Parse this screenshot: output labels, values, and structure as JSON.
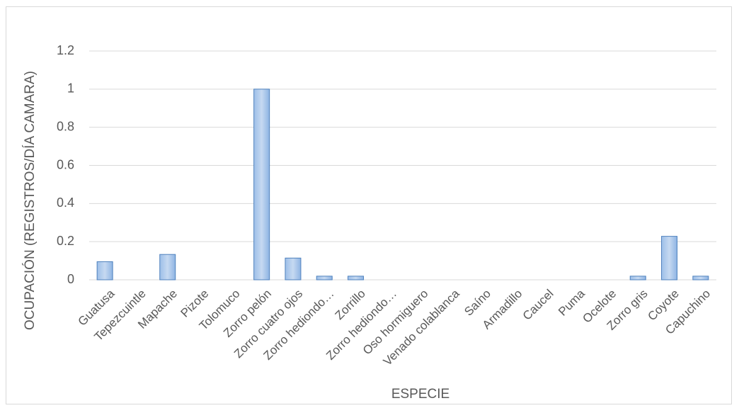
{
  "chart_data": {
    "type": "bar",
    "title": "",
    "xlabel": "ESPECIE",
    "ylabel": "OCUPACIÓN (REGISTROS/DÍA CAMARA)",
    "ylim": [
      0,
      1.2
    ],
    "yticks": [
      "0",
      "0.2",
      "0.4",
      "0.6",
      "0.8",
      "1",
      "1.2"
    ],
    "ytick_values": [
      0,
      0.2,
      0.4,
      0.6,
      0.8,
      1,
      1.2
    ],
    "grid": true,
    "legend": "none",
    "categories": [
      "Guatusa",
      "Tepezcuintle",
      "Mapache",
      "Pizote",
      "Tolomuco",
      "Zorro pelón",
      "Zorro cuatro ojos",
      "Zorro hediondo…",
      "Zorrillo",
      "Zorro hediondo…",
      "Oso hormiguero",
      "Venado colablanca",
      "Saíno",
      "Armadillo",
      "Caucel",
      "Puma",
      "Ocelote",
      "Zorro gris",
      "Coyote",
      "Capuchino"
    ],
    "values": [
      0.095,
      0,
      0.133,
      0,
      0,
      1.0,
      0.114,
      0.019,
      0.019,
      0,
      0,
      0,
      0,
      0,
      0,
      0,
      0,
      0.019,
      0.228,
      0.019
    ],
    "colors": {
      "bar_fill_top": "#c6d9f1",
      "bar_fill_bottom": "#8eb4e3",
      "bar_stroke": "#4f81bd",
      "grid": "#d9d9d9",
      "text": "#595959"
    }
  }
}
